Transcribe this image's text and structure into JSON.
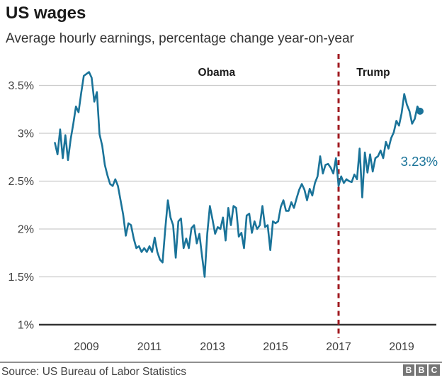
{
  "page": {
    "title": "US wages",
    "subtitle": "Average hourly earnings, percentage change year-on-year"
  },
  "footer": {
    "source": "Source: US Bureau of Labor Statistics",
    "logo_letters": [
      "B",
      "B",
      "C"
    ]
  },
  "colors": {
    "line": "#1a7399",
    "divider": "#a01a20",
    "grid": "#cccccc",
    "axis": "#333333",
    "text_dark": "#1a1a1a",
    "text_mid": "#404040",
    "logo_bg": "#757575"
  },
  "chart_data": {
    "type": "line",
    "title": "US wages",
    "subtitle": "Average hourly earnings, percentage change year-on-year",
    "x_unit": "month",
    "x_start": "2008-01",
    "x_end": "2019-08",
    "xlim": [
      2008.0,
      2019.95
    ],
    "ylim": [
      1.0,
      3.75
    ],
    "grid": "horizontal",
    "legend": "none",
    "y_ticks": [
      {
        "label": "3.5%",
        "value": 3.5
      },
      {
        "label": "3%",
        "value": 3.0
      },
      {
        "label": "2.5%",
        "value": 2.5
      },
      {
        "label": "2%",
        "value": 2.0
      },
      {
        "label": "1.5%",
        "value": 1.5
      },
      {
        "label": "1%",
        "value": 1.0
      }
    ],
    "x_ticks": [
      {
        "label": "2009",
        "value": 2009
      },
      {
        "label": "2011",
        "value": 2011
      },
      {
        "label": "2013",
        "value": 2013
      },
      {
        "label": "2015",
        "value": 2015
      },
      {
        "label": "2017",
        "value": 2017
      },
      {
        "label": "2019",
        "value": 2019
      }
    ],
    "divider": {
      "x_value": 2017.0,
      "style": "dashed",
      "meaning": "start of Trump presidency (Jan 2017)"
    },
    "annotations": [
      {
        "name": "obama-label",
        "text": "Obama",
        "x_value": 2013.13,
        "y_value": 3.6,
        "bold": true,
        "size": 15.5,
        "color": "dark"
      },
      {
        "name": "trump-label",
        "text": "Trump",
        "x_value": 2018.1,
        "y_value": 3.6,
        "bold": true,
        "size": 15.5,
        "color": "dark"
      },
      {
        "name": "latest-value-label",
        "text": "3.23%",
        "x_value": 2019.56,
        "y_value": 2.66,
        "bold": false,
        "size": 18.5,
        "color": "line"
      }
    ],
    "end_point": {
      "date": "2019-08",
      "value": 3.23,
      "label": "3.23%"
    },
    "series": [
      {
        "name": "Average hourly earnings, % change year-on-year",
        "monthly_values": [
          2.9,
          2.78,
          3.04,
          2.74,
          2.98,
          2.72,
          2.94,
          3.1,
          3.28,
          3.22,
          3.42,
          3.6,
          3.62,
          3.64,
          3.58,
          3.33,
          3.43,
          2.99,
          2.87,
          2.67,
          2.56,
          2.47,
          2.45,
          2.52,
          2.45,
          2.3,
          2.15,
          1.93,
          2.06,
          2.04,
          1.9,
          1.8,
          1.82,
          1.76,
          1.8,
          1.76,
          1.82,
          1.76,
          1.91,
          1.76,
          1.68,
          1.65,
          2.0,
          2.3,
          2.12,
          2.04,
          1.7,
          2.08,
          2.11,
          1.8,
          1.9,
          1.8,
          2.01,
          2.04,
          1.85,
          1.95,
          1.72,
          1.5,
          1.95,
          2.24,
          2.1,
          1.95,
          2.02,
          2.0,
          2.12,
          1.88,
          2.22,
          2.04,
          2.24,
          2.22,
          1.92,
          1.96,
          1.8,
          2.14,
          2.16,
          1.96,
          2.08,
          2.0,
          2.04,
          2.24,
          2.02,
          2.04,
          1.78,
          2.08,
          2.06,
          2.08,
          2.23,
          2.3,
          2.19,
          2.19,
          2.28,
          2.22,
          2.32,
          2.41,
          2.47,
          2.41,
          2.3,
          2.42,
          2.35,
          2.48,
          2.55,
          2.76,
          2.58,
          2.67,
          2.68,
          2.64,
          2.58,
          2.74,
          2.45,
          2.55,
          2.48,
          2.52,
          2.5,
          2.49,
          2.57,
          2.52,
          2.84,
          2.33,
          2.8,
          2.59,
          2.78,
          2.6,
          2.74,
          2.76,
          2.82,
          2.74,
          2.91,
          2.84,
          2.95,
          3.01,
          3.13,
          3.08,
          3.21,
          3.41,
          3.3,
          3.23,
          3.1,
          3.15,
          3.28,
          3.23
        ]
      }
    ]
  }
}
